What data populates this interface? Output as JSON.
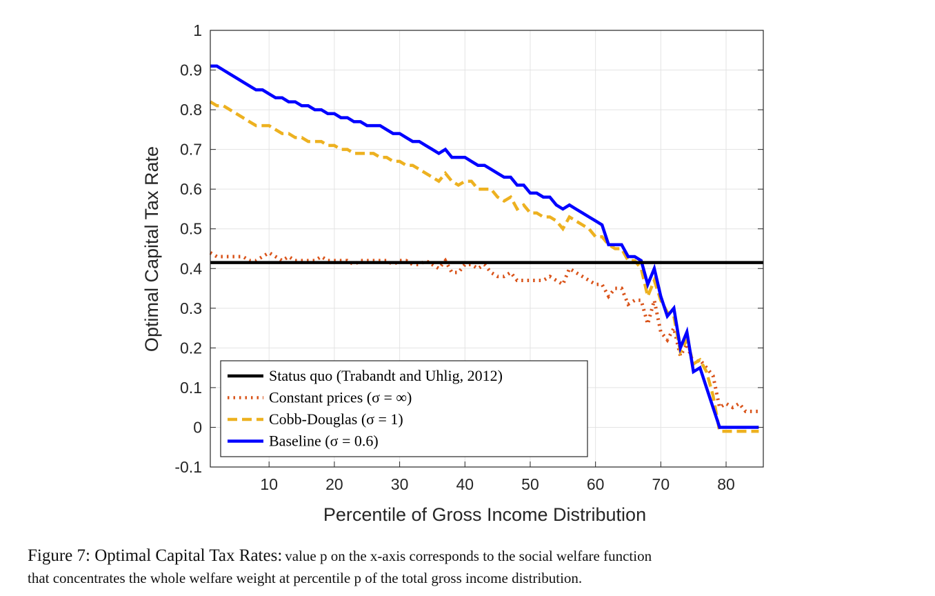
{
  "chart_data": {
    "type": "line",
    "xlabel": "Percentile of Gross Income Distribution",
    "ylabel": "Optimal Capital Tax Rate",
    "xlim": [
      1,
      85.7
    ],
    "ylim": [
      -0.1,
      1
    ],
    "xticks": [
      10,
      20,
      30,
      40,
      50,
      60,
      70,
      80
    ],
    "yticks": [
      -0.1,
      0,
      0.1,
      0.2,
      0.3,
      0.4,
      0.5,
      0.6,
      0.7,
      0.8,
      0.9,
      1
    ],
    "ytick_labels": [
      "-0.1",
      "0",
      "0.1",
      "0.2",
      "0.3",
      "0.4",
      "0.5",
      "0.6",
      "0.7",
      "0.8",
      "0.9",
      "1"
    ],
    "grid": true,
    "legend_position": "bottom-left",
    "series": [
      {
        "name": "Status quo (Trabandt and Uhlig, 2012)",
        "color": "#000000",
        "style": "solid",
        "x": [
          1,
          85.7
        ],
        "values": [
          0.415,
          0.415
        ]
      },
      {
        "name": "Constant prices (σ = ∞)",
        "color": "#D95319",
        "style": "dotted",
        "values": [
          0.44,
          0.43,
          0.43,
          0.43,
          0.43,
          0.43,
          0.42,
          0.42,
          0.43,
          0.44,
          0.43,
          0.42,
          0.43,
          0.42,
          0.42,
          0.42,
          0.42,
          0.43,
          0.42,
          0.42,
          0.42,
          0.42,
          0.41,
          0.42,
          0.42,
          0.42,
          0.42,
          0.42,
          0.41,
          0.42,
          0.42,
          0.41,
          0.41,
          0.42,
          0.41,
          0.4,
          0.42,
          0.39,
          0.39,
          0.41,
          0.41,
          0.4,
          0.41,
          0.39,
          0.38,
          0.38,
          0.39,
          0.37,
          0.37,
          0.37,
          0.37,
          0.37,
          0.38,
          0.37,
          0.36,
          0.4,
          0.39,
          0.38,
          0.37,
          0.36,
          0.36,
          0.33,
          0.35,
          0.35,
          0.31,
          0.32,
          0.32,
          0.26,
          0.32,
          0.24,
          0.22,
          0.25,
          0.18,
          0.21,
          0.16,
          0.17,
          0.15,
          0.13,
          0.05,
          0.06,
          0.05,
          0.06,
          0.04,
          0.04,
          0.04
        ]
      },
      {
        "name": "Cobb-Douglas (σ = 1)",
        "color": "#EDB120",
        "style": "dashed",
        "values": [
          0.82,
          0.81,
          0.81,
          0.8,
          0.79,
          0.78,
          0.77,
          0.76,
          0.76,
          0.76,
          0.75,
          0.74,
          0.74,
          0.73,
          0.73,
          0.72,
          0.72,
          0.72,
          0.71,
          0.71,
          0.7,
          0.7,
          0.69,
          0.69,
          0.69,
          0.69,
          0.68,
          0.68,
          0.67,
          0.67,
          0.66,
          0.66,
          0.65,
          0.64,
          0.63,
          0.62,
          0.64,
          0.62,
          0.61,
          0.62,
          0.62,
          0.6,
          0.6,
          0.6,
          0.58,
          0.57,
          0.58,
          0.55,
          0.56,
          0.54,
          0.54,
          0.53,
          0.53,
          0.52,
          0.5,
          0.53,
          0.52,
          0.51,
          0.5,
          0.48,
          0.48,
          0.46,
          0.45,
          0.45,
          0.42,
          0.42,
          0.4,
          0.33,
          0.37,
          0.32,
          0.29,
          0.28,
          0.19,
          0.22,
          0.16,
          0.17,
          0.14,
          0.08,
          -0.01,
          -0.01,
          -0.01,
          -0.01,
          -0.01,
          -0.01,
          -0.01
        ]
      },
      {
        "name": "Baseline (σ = 0.6)",
        "color": "#0000FF",
        "style": "solid",
        "values": [
          0.91,
          0.91,
          0.9,
          0.89,
          0.88,
          0.87,
          0.86,
          0.85,
          0.85,
          0.84,
          0.83,
          0.83,
          0.82,
          0.82,
          0.81,
          0.81,
          0.8,
          0.8,
          0.79,
          0.79,
          0.78,
          0.78,
          0.77,
          0.77,
          0.76,
          0.76,
          0.76,
          0.75,
          0.74,
          0.74,
          0.73,
          0.72,
          0.72,
          0.71,
          0.7,
          0.69,
          0.7,
          0.68,
          0.68,
          0.68,
          0.67,
          0.66,
          0.66,
          0.65,
          0.64,
          0.63,
          0.63,
          0.61,
          0.61,
          0.59,
          0.59,
          0.58,
          0.58,
          0.56,
          0.55,
          0.56,
          0.55,
          0.54,
          0.53,
          0.52,
          0.51,
          0.46,
          0.46,
          0.46,
          0.43,
          0.43,
          0.42,
          0.36,
          0.4,
          0.33,
          0.28,
          0.3,
          0.2,
          0.24,
          0.14,
          0.15,
          0.1,
          0.05,
          0.0,
          0.0,
          0.0,
          0.0,
          0.0,
          0.0,
          0.0
        ]
      }
    ]
  },
  "caption": {
    "lead": "Figure 7: Optimal Capital Tax Rates:",
    "line1_rest": "value p on the x-axis corresponds to the social welfare function",
    "line2": "that concentrates the whole welfare weight at percentile p of the total gross income distribution."
  }
}
